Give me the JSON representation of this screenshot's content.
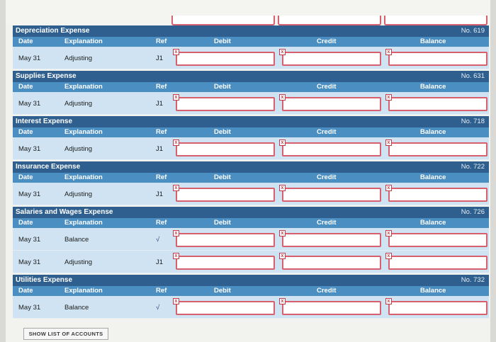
{
  "columns": {
    "date": "Date",
    "explanation": "Explanation",
    "ref": "Ref",
    "debit": "Debit",
    "credit": "Credit",
    "balance": "Balance"
  },
  "error_icon": "x-icon",
  "accounts": [
    {
      "title": "Depreciation Expense",
      "no": "No. 619",
      "rows": [
        {
          "date": "May 31",
          "explanation": "Adjusting",
          "ref": "J1"
        }
      ]
    },
    {
      "title": "Supplies Expense",
      "no": "No. 631",
      "rows": [
        {
          "date": "May 31",
          "explanation": "Adjusting",
          "ref": "J1"
        }
      ]
    },
    {
      "title": "Interest Expense",
      "no": "No. 718",
      "rows": [
        {
          "date": "May 31",
          "explanation": "Adjusting",
          "ref": "J1"
        }
      ]
    },
    {
      "title": "Insurance Expense",
      "no": "No. 722",
      "rows": [
        {
          "date": "May 31",
          "explanation": "Adjusting",
          "ref": "J1"
        }
      ]
    },
    {
      "title": "Salaries and Wages Expense",
      "no": "No. 726",
      "rows": [
        {
          "date": "May 31",
          "explanation": "Balance",
          "ref": "√"
        },
        {
          "date": "May 31",
          "explanation": "Adjusting",
          "ref": "J1"
        }
      ]
    },
    {
      "title": "Utilities Expense",
      "no": "No. 732",
      "rows": [
        {
          "date": "May 31",
          "explanation": "Balance",
          "ref": "√"
        }
      ]
    }
  ],
  "show_accounts_button": "SHOW LIST OF ACCOUNTS"
}
